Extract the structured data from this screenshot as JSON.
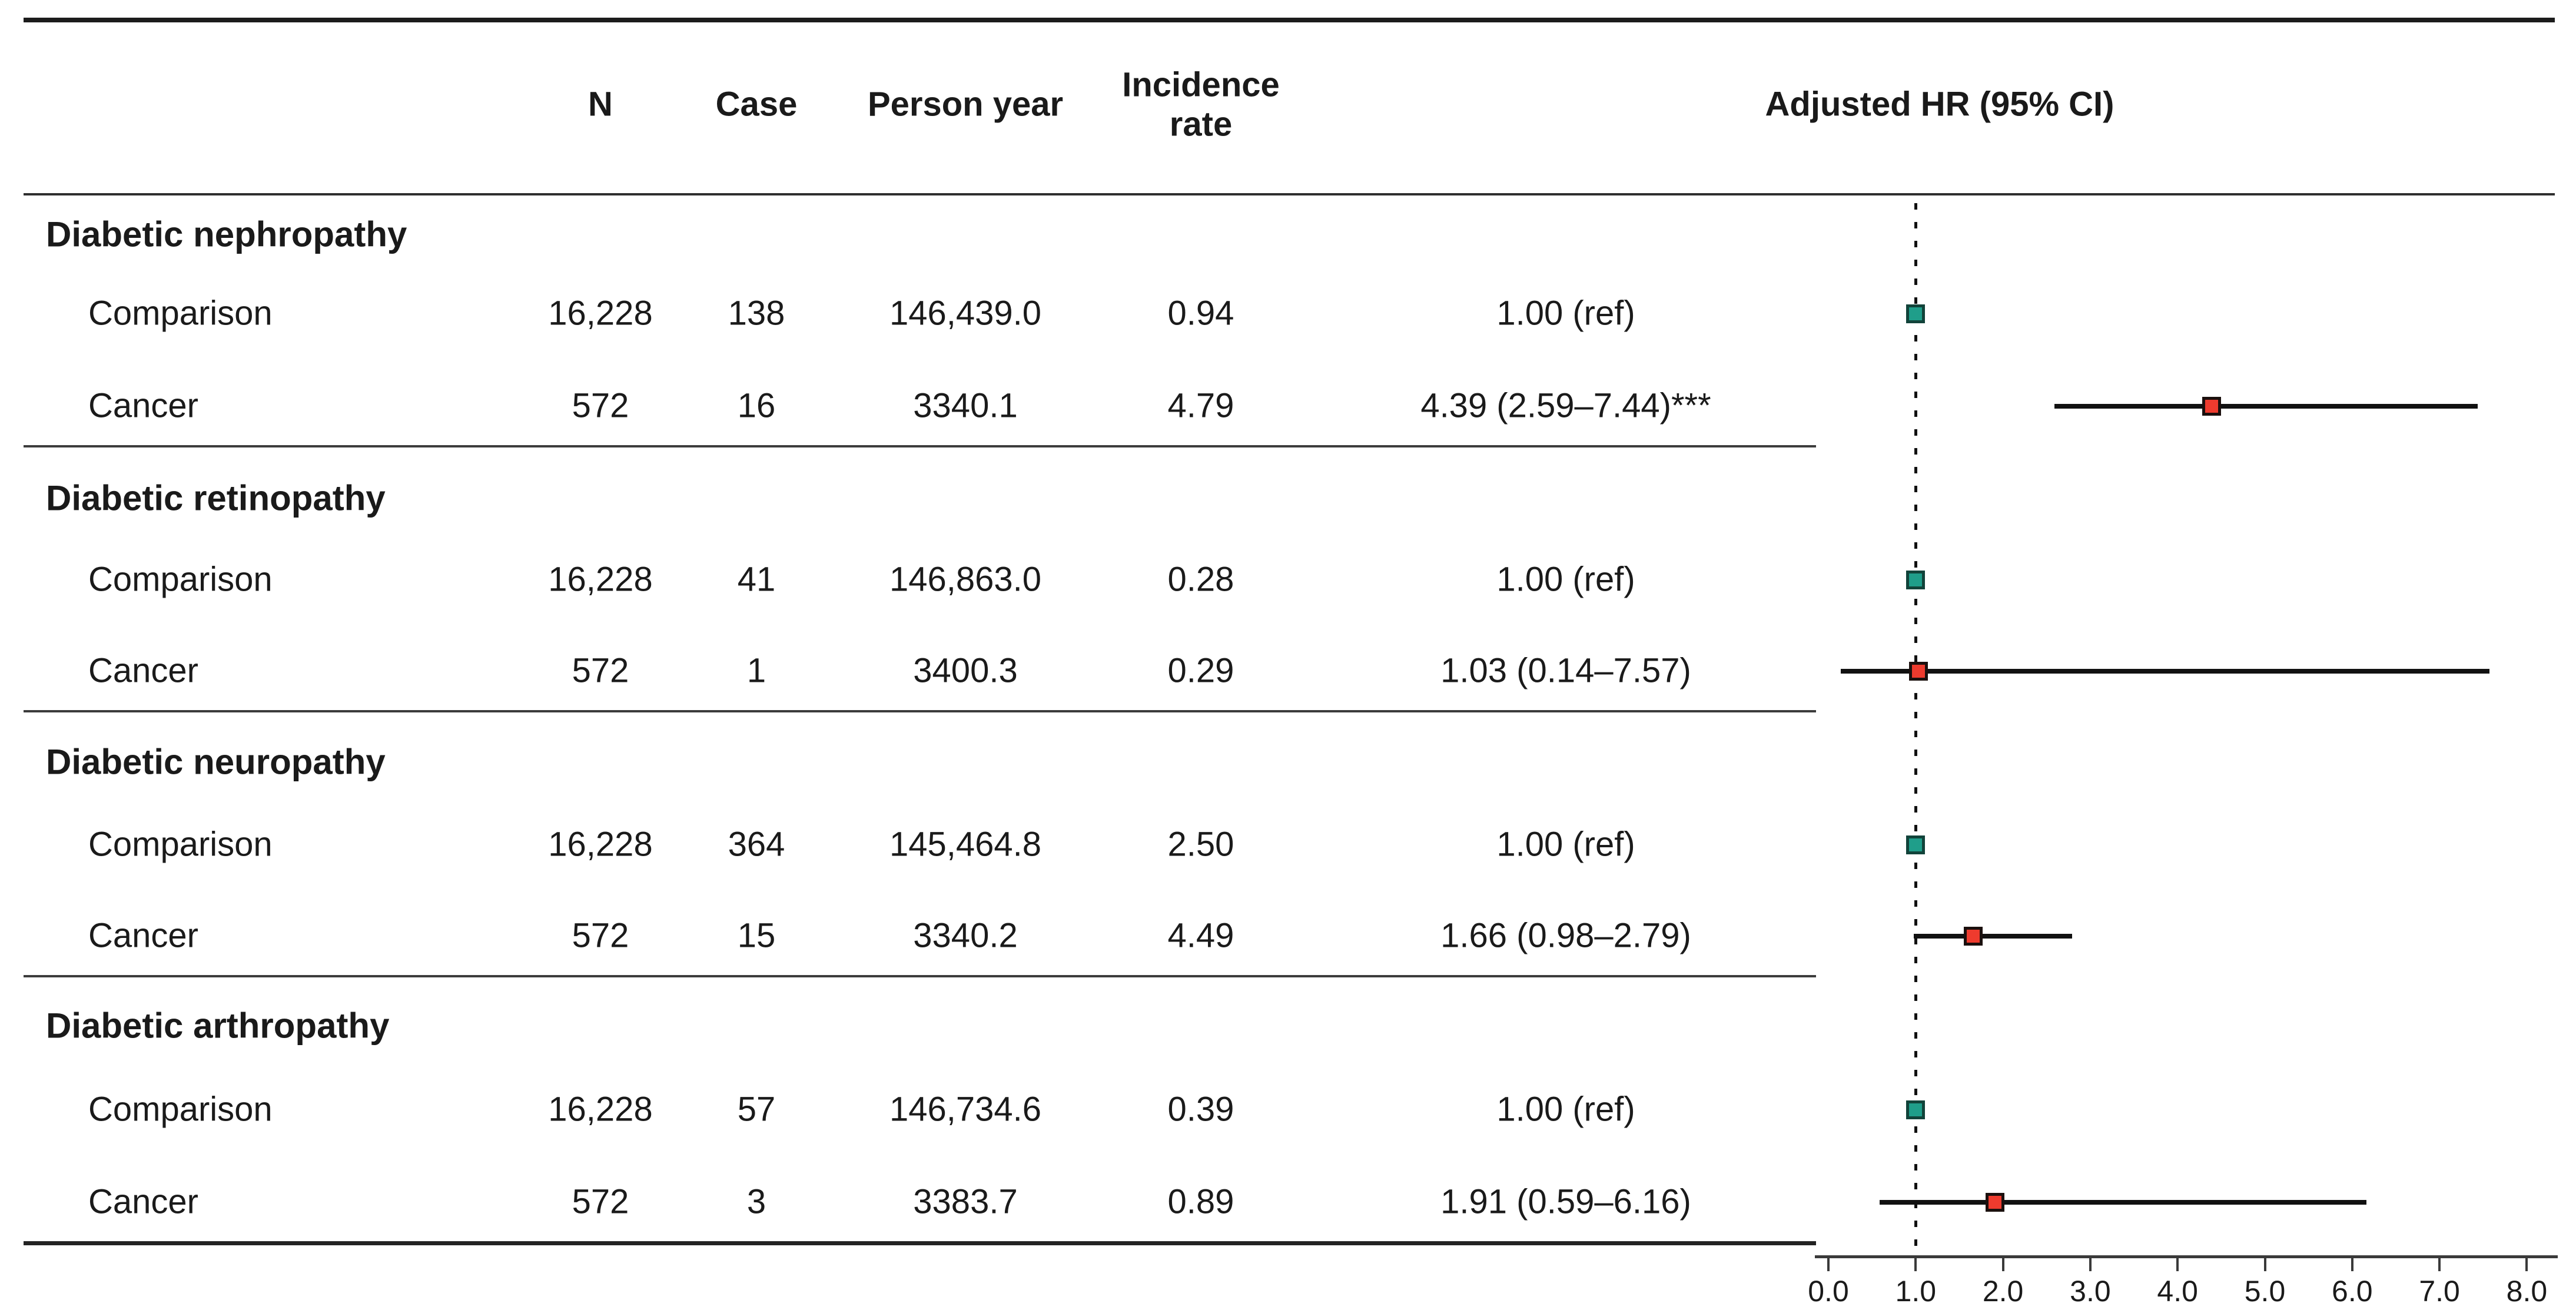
{
  "figure": {
    "description": "Forest plot table of adjusted hazard ratios for diabetic complications, cancer vs comparison cohorts"
  },
  "table": {
    "columns": {
      "n": "N",
      "case": "Case",
      "person_year": "Person year",
      "incidence_rate": "Incidence\nrate",
      "hr": "Adjusted HR (95% CI)"
    },
    "sections": [
      {
        "label": "Diabetic nephropathy",
        "rows": [
          {
            "group": "Comparison",
            "n": "16,228",
            "case": "138",
            "person_year": "146,439.0",
            "incidence_rate": "0.94",
            "hr_text": "1.00 (ref)"
          },
          {
            "group": "Cancer",
            "n": "572",
            "case": "16",
            "person_year": "3340.1",
            "incidence_rate": "4.79",
            "hr_text": "4.39 (2.59–7.44)***"
          }
        ]
      },
      {
        "label": "Diabetic retinopathy",
        "rows": [
          {
            "group": "Comparison",
            "n": "16,228",
            "case": "41",
            "person_year": "146,863.0",
            "incidence_rate": "0.28",
            "hr_text": "1.00 (ref)"
          },
          {
            "group": "Cancer",
            "n": "572",
            "case": "1",
            "person_year": "3400.3",
            "incidence_rate": "0.29",
            "hr_text": "1.03 (0.14–7.57)"
          }
        ]
      },
      {
        "label": "Diabetic neuropathy",
        "rows": [
          {
            "group": "Comparison",
            "n": "16,228",
            "case": "364",
            "person_year": "145,464.8",
            "incidence_rate": "2.50",
            "hr_text": "1.00 (ref)"
          },
          {
            "group": "Cancer",
            "n": "572",
            "case": "15",
            "person_year": "3340.2",
            "incidence_rate": "4.49",
            "hr_text": "1.66 (0.98–2.79)"
          }
        ]
      },
      {
        "label": "Diabetic arthropathy",
        "rows": [
          {
            "group": "Comparison",
            "n": "16,228",
            "case": "57",
            "person_year": "146,734.6",
            "incidence_rate": "0.39",
            "hr_text": "1.00 (ref)"
          },
          {
            "group": "Cancer",
            "n": "572",
            "case": "3",
            "person_year": "3383.7",
            "incidence_rate": "0.89",
            "hr_text": "1.91 (0.59–6.16)"
          }
        ]
      }
    ]
  },
  "chart_data": {
    "type": "forest",
    "title": "Adjusted HR (95% CI)",
    "x_axis": {
      "range": [
        0,
        8.5
      ],
      "tick_values": [
        0,
        1,
        2,
        3,
        4,
        5,
        6,
        7,
        8
      ],
      "tick_labels": [
        "0.0",
        "1.0",
        "2.0",
        "3.0",
        "4.0",
        "5.0",
        "6.0",
        "7.0",
        "8.0"
      ],
      "reference_line": 1.0
    },
    "rows": [
      {
        "section": "Diabetic nephropathy",
        "group": "Comparison",
        "hr": 1.0,
        "ci": null,
        "marker": "comparison"
      },
      {
        "section": "Diabetic nephropathy",
        "group": "Cancer",
        "hr": 4.39,
        "ci": [
          2.59,
          7.44
        ],
        "marker": "cancer",
        "significance": "***"
      },
      {
        "section": "Diabetic retinopathy",
        "group": "Comparison",
        "hr": 1.0,
        "ci": null,
        "marker": "comparison"
      },
      {
        "section": "Diabetic retinopathy",
        "group": "Cancer",
        "hr": 1.03,
        "ci": [
          0.14,
          7.57
        ],
        "marker": "cancer"
      },
      {
        "section": "Diabetic neuropathy",
        "group": "Comparison",
        "hr": 1.0,
        "ci": null,
        "marker": "comparison"
      },
      {
        "section": "Diabetic neuropathy",
        "group": "Cancer",
        "hr": 1.66,
        "ci": [
          0.98,
          2.79
        ],
        "marker": "cancer"
      },
      {
        "section": "Diabetic arthropathy",
        "group": "Comparison",
        "hr": 1.0,
        "ci": null,
        "marker": "comparison"
      },
      {
        "section": "Diabetic arthropathy",
        "group": "Cancer",
        "hr": 1.91,
        "ci": [
          0.59,
          6.16
        ],
        "marker": "cancer"
      }
    ],
    "colors": {
      "comparison_fill": "#1f9e8a",
      "comparison_border": "#12433a",
      "cancer_fill": "#ee3b2e",
      "cancer_border": "#1b100e",
      "ci_line": "#111111",
      "axis": "#3a3a3a",
      "reference_dotted": "#111111"
    }
  }
}
